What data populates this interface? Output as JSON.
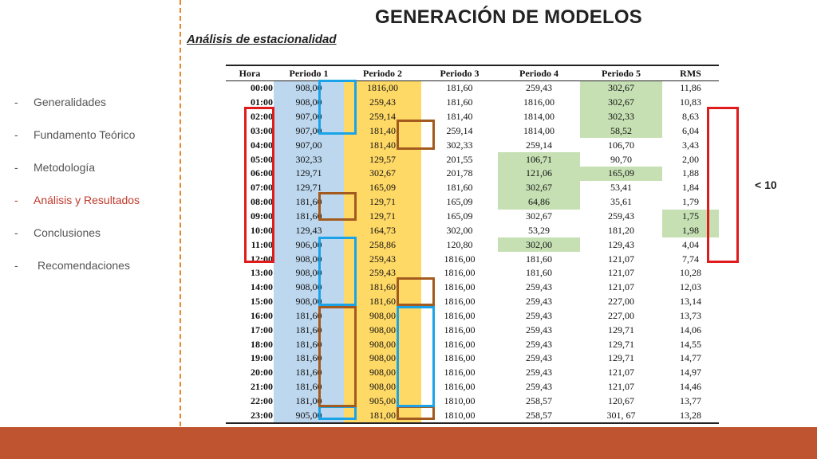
{
  "header": {
    "title": "GENERACIÓN DE MODELOS",
    "subtitle": "Análisis de estacionalidad"
  },
  "nav": {
    "items": [
      {
        "label": "Generalidades",
        "active": false
      },
      {
        "label": "Fundamento Teórico",
        "active": false
      },
      {
        "label": "Metodología",
        "active": false
      },
      {
        "label": "Análisis y Resultados",
        "active": true
      },
      {
        "label": "Conclusiones",
        "active": false
      },
      {
        "label": "Recomendaciones",
        "active": false
      }
    ]
  },
  "annotation": {
    "threshold_label": "< 10"
  },
  "colors": {
    "accent_footer": "#bf5530",
    "divider": "#e0892a",
    "periodo1_fill": "#bdd7ee",
    "periodo2_fill": "#ffd966",
    "highlight_fill": "#c6e0b4",
    "box_blue": "#1aa3e8",
    "box_orange": "#a35a1e",
    "box_red": "#e01b1b",
    "active_nav": "#c0392b"
  },
  "table": {
    "columns": [
      "Hora",
      "Periodo 1",
      "Periodo 2",
      "Periodo 3",
      "Periodo 4",
      "Periodo 5",
      "RMS"
    ],
    "rows": [
      [
        "00:00",
        "908,00",
        "1816,00",
        "181,60",
        "259,43",
        "302,67",
        "11,86"
      ],
      [
        "01:00",
        "908,00",
        "259,43",
        "181,60",
        "1816,00",
        "302,67",
        "10,83"
      ],
      [
        "02:00",
        "907,00",
        "259,14",
        "181,40",
        "1814,00",
        "302,33",
        "8,63"
      ],
      [
        "03:00",
        "907,00",
        "181,40",
        "259,14",
        "1814,00",
        "58,52",
        "6,04"
      ],
      [
        "04:00",
        "907,00",
        "181,40",
        "302,33",
        "259,14",
        "106,70",
        "3,43"
      ],
      [
        "05:00",
        "302,33",
        "129,57",
        "201,55",
        "106,71",
        "90,70",
        "2,00"
      ],
      [
        "06:00",
        "129,71",
        "302,67",
        "201,78",
        "121,06",
        "165,09",
        "1,88"
      ],
      [
        "07:00",
        "129,71",
        "165,09",
        "181,60",
        "302,67",
        "53,41",
        "1,84"
      ],
      [
        "08:00",
        "181,60",
        "129,71",
        "165,09",
        "64,86",
        "35,61",
        "1,79"
      ],
      [
        "09:00",
        "181,60",
        "129,71",
        "165,09",
        "302,67",
        "259,43",
        "1,75"
      ],
      [
        "10:00",
        "129,43",
        "164,73",
        "302,00",
        "53,29",
        "181,20",
        "1,98"
      ],
      [
        "11:00",
        "906,00",
        "258,86",
        "120,80",
        "302,00",
        "129,43",
        "4,04"
      ],
      [
        "12:00",
        "908,00",
        "259,43",
        "1816,00",
        "181,60",
        "121,07",
        "7,74"
      ],
      [
        "13:00",
        "908,00",
        "259,43",
        "1816,00",
        "181,60",
        "121,07",
        "10,28"
      ],
      [
        "14:00",
        "908,00",
        "181,60",
        "1816,00",
        "259,43",
        "121,07",
        "12,03"
      ],
      [
        "15:00",
        "908,00",
        "181,60",
        "1816,00",
        "259,43",
        "227,00",
        "13,14"
      ],
      [
        "16:00",
        "181,60",
        "908,00",
        "1816,00",
        "259,43",
        "227,00",
        "13,73"
      ],
      [
        "17:00",
        "181,60",
        "908,00",
        "1816,00",
        "259,43",
        "129,71",
        "14,06"
      ],
      [
        "18:00",
        "181,60",
        "908,00",
        "1816,00",
        "259,43",
        "129,71",
        "14,55"
      ],
      [
        "19:00",
        "181,60",
        "908,00",
        "1816,00",
        "259,43",
        "129,71",
        "14,77"
      ],
      [
        "20:00",
        "181,60",
        "908,00",
        "1816,00",
        "259,43",
        "121,07",
        "14,97"
      ],
      [
        "21:00",
        "181,60",
        "908,00",
        "1816,00",
        "259,43",
        "121,07",
        "14,46"
      ],
      [
        "22:00",
        "181,00",
        "905,00",
        "1810,00",
        "258,57",
        "120,67",
        "13,77"
      ],
      [
        "23:00",
        "905,00",
        "181,00",
        "1810,00",
        "258,57",
        "301, 67",
        "13,28"
      ]
    ],
    "highlighted_cells": [
      [
        5,
        3
      ],
      [
        6,
        3
      ],
      [
        7,
        3
      ],
      [
        8,
        3
      ],
      [
        0,
        4
      ],
      [
        1,
        4
      ],
      [
        2,
        4
      ],
      [
        3,
        4
      ],
      [
        6,
        4
      ],
      [
        9,
        5
      ],
      [
        10,
        5
      ],
      [
        11,
        3
      ]
    ]
  }
}
